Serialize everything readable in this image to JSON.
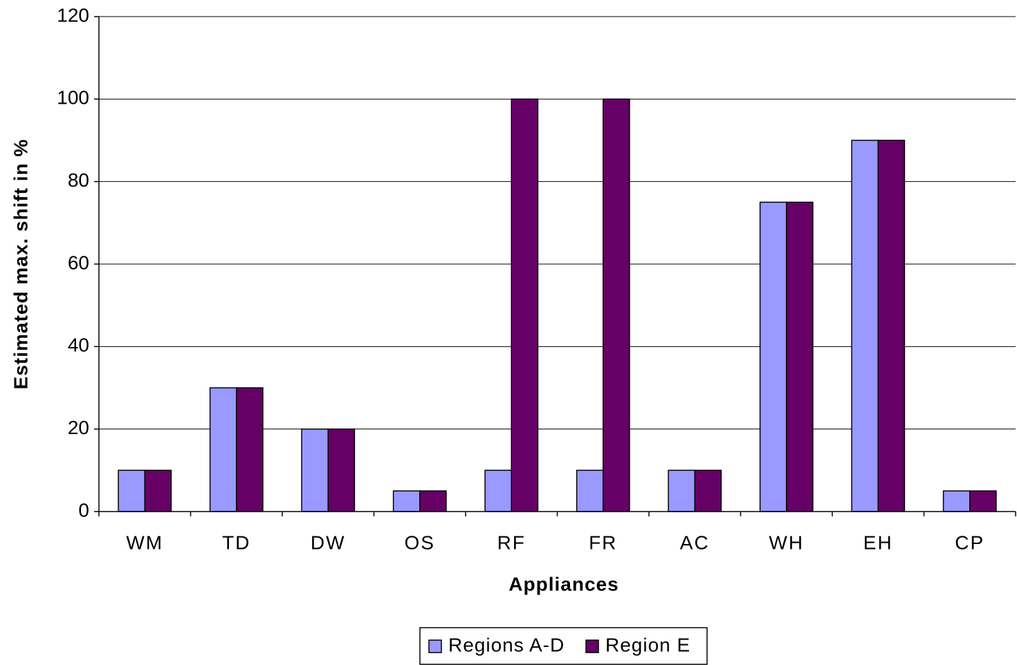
{
  "chart_data": {
    "type": "bar",
    "xlabel": "Appliances",
    "ylabel": "Estimated max. shift in %",
    "categories": [
      "WM",
      "TD",
      "DW",
      "OS",
      "RF",
      "FR",
      "AC",
      "WH",
      "EH",
      "CP"
    ],
    "series": [
      {
        "name": "Regions A-D",
        "color": "#9999ff",
        "values": [
          10,
          30,
          20,
          5,
          10,
          10,
          10,
          75,
          90,
          5
        ]
      },
      {
        "name": "Region E",
        "color": "#660066",
        "values": [
          10,
          30,
          20,
          5,
          100,
          100,
          10,
          75,
          90,
          5
        ]
      }
    ],
    "ylim": [
      0,
      120
    ],
    "yticks": [
      0,
      20,
      40,
      60,
      80,
      100,
      120
    ],
    "grid": true,
    "legend": "bottom"
  }
}
